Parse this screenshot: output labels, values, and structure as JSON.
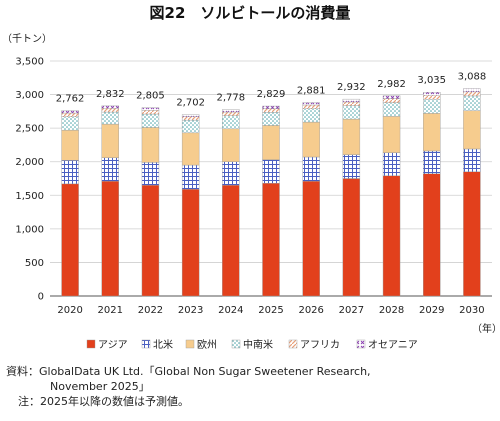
{
  "chart_data": {
    "type": "bar",
    "stacked": true,
    "title": "図22　ソルビトールの消費量",
    "ylabel": "（千トン）",
    "xlabel": "（年）",
    "ylim": [
      0,
      3500
    ],
    "yticks": [
      "0",
      "500",
      "1,000",
      "1,500",
      "2,000",
      "2,500",
      "3,000",
      "3,500"
    ],
    "grid": true,
    "legend_position": "bottom",
    "categories": [
      "2020",
      "2021",
      "2022",
      "2023",
      "2024",
      "2025",
      "2026",
      "2027",
      "2028",
      "2029",
      "2030"
    ],
    "totals": [
      "2,762",
      "2,832",
      "2,805",
      "2,702",
      "2,778",
      "2,829",
      "2,881",
      "2,932",
      "2,982",
      "3,035",
      "3,088"
    ],
    "series": [
      {
        "name": "アジア",
        "color": "#e2401c",
        "pattern": "solid",
        "values": [
          1670,
          1710,
          1650,
          1590,
          1650,
          1680,
          1710,
          1750,
          1790,
          1820,
          1850
        ]
      },
      {
        "name": "北米",
        "color": "#4a5fc1",
        "pattern": "grid",
        "values": [
          350,
          350,
          340,
          360,
          350,
          350,
          360,
          355,
          345,
          340,
          340
        ]
      },
      {
        "name": "欧州",
        "color": "#f6cc8e",
        "pattern": "solid",
        "values": [
          450,
          500,
          520,
          480,
          490,
          510,
          520,
          530,
          540,
          560,
          570
        ]
      },
      {
        "name": "中南米",
        "color": "#4aa3a8",
        "pattern": "dots",
        "values": [
          200,
          180,
          200,
          190,
          195,
          195,
          200,
          200,
          205,
          210,
          220
        ]
      },
      {
        "name": "アフリカ",
        "color": "#e8a07a",
        "pattern": "diagonal",
        "values": [
          55,
          55,
          55,
          50,
          55,
          55,
          55,
          55,
          60,
          60,
          60
        ]
      },
      {
        "name": "オセアニア",
        "color": "#8a3fb0",
        "pattern": "crosses",
        "values": [
          37,
          37,
          40,
          32,
          38,
          39,
          36,
          42,
          42,
          45,
          48
        ]
      }
    ]
  },
  "notes": {
    "source_line1": "資料：GlobalData UK Ltd.「Global Non Sugar Sweetener Research,",
    "source_line2": "November 2025」",
    "note": "注：2025年以降の数値は予測値。"
  }
}
